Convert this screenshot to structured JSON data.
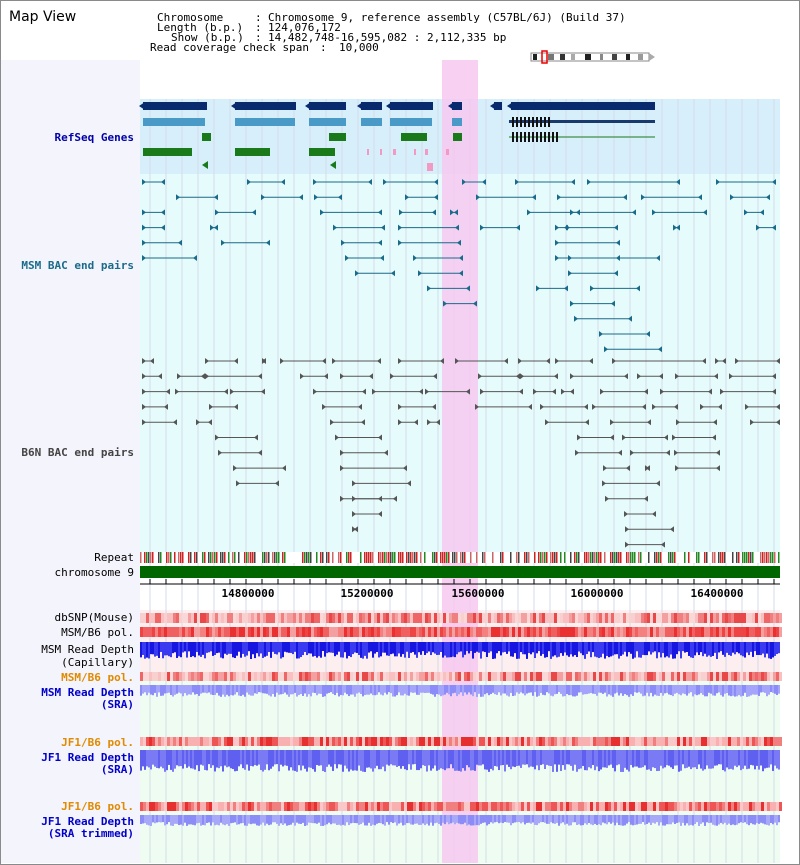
{
  "view": {
    "title": "Map View"
  },
  "info": {
    "chromosome_key": "Chromosome",
    "chromosome_value": "Chromosome 9, reference assembly (C57BL/6J) (Build 37)",
    "length_key": "Length (b.p.)",
    "length_value": "124,076,172",
    "show_key": "Show (b.p.)",
    "show_value": "14,482,748-16,595,082 : 2,112,335 bp",
    "coverage_key": "Read coverage check span",
    "coverage_value": "10,000"
  },
  "tracks": {
    "refseq": {
      "label": "RefSeq Genes",
      "color": "#0000aa"
    },
    "msm_bac": {
      "label": "MSM BAC end pairs",
      "color": "#1a6b8a"
    },
    "b6n_bac": {
      "label": "B6N BAC end pairs",
      "color": "#444444"
    },
    "repeat": {
      "label": "Repeat"
    },
    "chromosome": {
      "label": "chromosome 9"
    },
    "dbsnp": {
      "label": "dbSNP(Mouse)"
    },
    "msm_b6_pol_cap": {
      "label": "MSM/B6 pol."
    },
    "msm_depth_cap": {
      "label1": "MSM Read Depth",
      "label2": "(Capillary)"
    },
    "msm_b6_pol_sra": {
      "label": "MSM/B6 pol.",
      "color": "#e08a00"
    },
    "msm_depth_sra": {
      "label1": "MSM Read Depth",
      "label2": "(SRA)",
      "color": "#0000cc"
    },
    "jf1_b6_pol": {
      "label": "JF1/B6 pol.",
      "color": "#e08a00"
    },
    "jf1_depth_sra": {
      "label1": "JF1 Read Depth",
      "label2": "(SRA)",
      "color": "#0000cc"
    },
    "jf1_b6_pol_trim": {
      "label": "JF1/B6 pol.",
      "color": "#e08a00"
    },
    "jf1_depth_trim": {
      "label1": "JF1 Read Depth",
      "label2": "(SRA trimmed)",
      "color": "#0000cc"
    }
  },
  "axis": {
    "ticks": [
      "14800000",
      "15200000",
      "15600000",
      "16000000",
      "16400000"
    ]
  },
  "colors": {
    "highlight": "#f6c8f0",
    "refseq_bg": "#d6effa",
    "msm_bg": "#e6fbfb",
    "chromosome_bar": "#006600",
    "refseq_dark": "#0a2a6e",
    "refseq_mid": "#4a9ac8",
    "refseq_green": "#1a7a1a"
  }
}
